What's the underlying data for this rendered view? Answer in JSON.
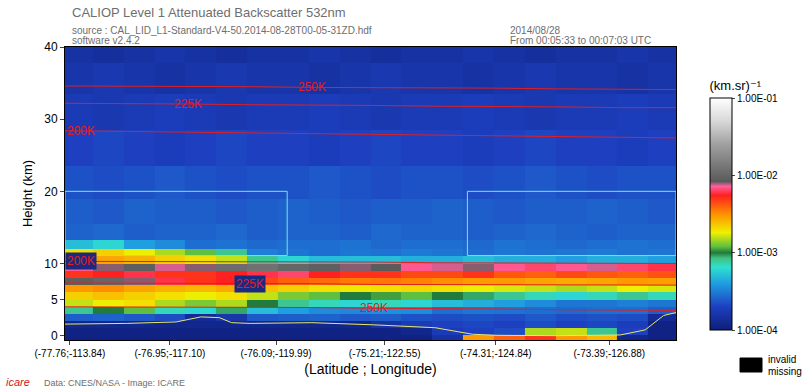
{
  "chart_data": {
    "type": "heatmap",
    "title": "CALIOP Level 1 Attenuated Backscatter 532nm",
    "texts": {
      "source": "source : CAL_LID_L1-Standard-V4-50.2014-08-28T00-05-31ZD.hdf",
      "software": "software v2.4.2",
      "date": "2014/08/28",
      "time": "From 00:05:33 to 00:07:03 UTC",
      "credit": "Data: CNES/NASA - Image: ICARE",
      "logo": "icare"
    },
    "x_label": "(Latitude ; Longitude)",
    "y_label": "Height (km)",
    "xlim": [
      -77.8,
      -72.85
    ],
    "xticks": [
      {
        "value": -77.76,
        "label": "(-77.76;-113.84)"
      },
      {
        "value": -76.95,
        "label": "(-76.95;-117.10)"
      },
      {
        "value": -76.09,
        "label": "(-76.09;-119.99)"
      },
      {
        "value": -75.21,
        "label": "(-75.21;-122.55)"
      },
      {
        "value": -74.31,
        "label": "(-74.31;-124.84)"
      },
      {
        "value": -73.39,
        "label": "(-73.39;-126.88)"
      }
    ],
    "ylim": [
      -0.6,
      40
    ],
    "yticks": [
      0,
      5,
      10,
      20,
      30,
      40
    ],
    "grid": false,
    "x": [
      -77.7,
      -77.45,
      -77.2,
      -76.95,
      -76.7,
      -76.45,
      -76.2,
      -75.95,
      -75.7,
      -75.45,
      -75.2,
      -74.95,
      -74.7,
      -74.45,
      -74.2,
      -73.95,
      -73.7,
      -73.45,
      -73.2,
      -72.95
    ],
    "y": [
      -0.3,
      0.5,
      1.5,
      2.5,
      3.5,
      4.5,
      5.5,
      6.5,
      7.5,
      8.5,
      9.5,
      10.5,
      11.5,
      12.5,
      14,
      17,
      21,
      26,
      31,
      36,
      39.5
    ],
    "cells": [
      [
        0.00011,
        0.00011,
        0.00011,
        0.00011,
        0.00011,
        0.00011,
        0.00011,
        0.00011,
        0.00011,
        0.00011,
        0.00011,
        0.00011,
        0.00015,
        0.003,
        0.004,
        0.005,
        0.003,
        0.0025,
        0.00012,
        0.00011
      ],
      [
        0.00011,
        0.00011,
        0.00011,
        0.00011,
        0.00011,
        0.00011,
        0.00011,
        0.00011,
        0.00011,
        0.00011,
        0.00011,
        0.00012,
        0.00018,
        0.0002,
        0.00022,
        0.0015,
        0.0016,
        0.0008,
        0.0002,
        0.00011
      ],
      [
        0.00012,
        0.00012,
        0.00012,
        0.00012,
        0.00012,
        0.00012,
        0.00012,
        0.00012,
        0.00012,
        0.00012,
        0.00015,
        0.00018,
        0.0002,
        0.00021,
        0.0002,
        0.00022,
        0.0002,
        0.00021,
        0.00019,
        0.00011
      ],
      [
        0.00025,
        0.00026,
        0.00024,
        0.00022,
        0.00013,
        0.00016,
        0.00024,
        0.00025,
        0.00026,
        0.00024,
        0.00025,
        0.00023,
        0.00022,
        0.00023,
        0.00022,
        0.00024,
        0.00022,
        0.00023,
        0.00022,
        0.00013
      ],
      [
        0.0008,
        0.001,
        0.0012,
        0.0007,
        0.0006,
        0.0009,
        0.0005,
        0.0004,
        0.00035,
        0.00034,
        0.00036,
        0.00035,
        0.00028,
        0.0003,
        0.00029,
        0.00028,
        0.00027,
        0.00028,
        0.00028,
        0.00025
      ],
      [
        0.0016,
        0.0018,
        0.002,
        0.0015,
        0.0013,
        0.0015,
        0.001,
        0.0008,
        0.0007,
        0.0006,
        0.0007,
        0.0006,
        0.0005,
        0.00045,
        0.0004,
        0.00035,
        0.0003,
        0.0003,
        0.00032,
        0.0003
      ],
      [
        0.0022,
        0.0024,
        0.0022,
        0.002,
        0.0018,
        0.002,
        0.0016,
        0.0013,
        0.0012,
        0.001,
        0.0011,
        0.0012,
        0.001,
        0.0009,
        0.0008,
        0.0007,
        0.0006,
        0.0007,
        0.0008,
        0.0007
      ],
      [
        0.003,
        0.0032,
        0.0028,
        0.0026,
        0.0025,
        0.0027,
        0.0024,
        0.0022,
        0.002,
        0.0019,
        0.002,
        0.0021,
        0.002,
        0.0018,
        0.0017,
        0.0016,
        0.0015,
        0.0016,
        0.0018,
        0.0017
      ],
      [
        0.009,
        0.01,
        0.008,
        0.006,
        0.005,
        0.0055,
        0.0045,
        0.004,
        0.0038,
        0.0035,
        0.0036,
        0.0034,
        0.0032,
        0.003,
        0.003,
        0.0028,
        0.0027,
        0.0028,
        0.003,
        0.0029
      ],
      [
        0.005,
        0.0055,
        0.006,
        0.005,
        0.005,
        0.0055,
        0.006,
        0.0065,
        0.0055,
        0.005,
        0.005,
        0.0045,
        0.0045,
        0.005,
        0.0042,
        0.004,
        0.0045,
        0.0042,
        0.004,
        0.0043
      ],
      [
        0.007,
        0.008,
        0.009,
        0.0075,
        0.008,
        0.011,
        0.012,
        0.01,
        0.009,
        0.008,
        0.0085,
        0.007,
        0.0075,
        0.008,
        0.007,
        0.0065,
        0.007,
        0.0075,
        0.0065,
        0.006
      ],
      [
        0.0025,
        0.0028,
        0.0026,
        0.0022,
        0.002,
        0.0016,
        0.0008,
        0.0006,
        0.0005,
        0.0005,
        0.0005,
        0.00045,
        0.00045,
        0.0005,
        0.00045,
        0.00045,
        0.0004,
        0.00045,
        0.00045,
        0.0004
      ],
      [
        0.002,
        0.0022,
        0.0018,
        0.0015,
        0.0012,
        0.0008,
        0.00032,
        0.0003,
        0.00028,
        0.0003,
        0.00029,
        0.00031,
        0.0003,
        0.00028,
        0.0003,
        0.00029,
        0.0003,
        0.00031,
        0.00029,
        0.0003
      ],
      [
        0.0005,
        0.0006,
        0.0004,
        0.00035,
        0.00028,
        0.00029,
        0.00027,
        0.00028,
        0.00028,
        0.00029,
        0.00027,
        0.00028,
        0.00028,
        0.00027,
        0.00029,
        0.00028,
        0.00027,
        0.00028,
        0.00029,
        0.00028
      ],
      [
        0.00026,
        0.00027,
        0.00025,
        0.00026,
        0.00026,
        0.00027,
        0.00025,
        0.00026,
        0.00026,
        0.00025,
        0.00027,
        0.00026,
        0.00026,
        0.00025,
        0.00026,
        0.00027,
        0.00026,
        0.00025,
        0.00026,
        0.00026
      ],
      [
        0.00025,
        0.00024,
        0.00026,
        0.00025,
        0.00025,
        0.00024,
        0.00025,
        0.00026,
        0.00025,
        0.00024,
        0.00025,
        0.00025,
        0.00026,
        0.00025,
        0.00024,
        0.00025,
        0.00025,
        0.00026,
        0.00025,
        0.00024
      ],
      [
        0.00023,
        0.00022,
        0.00023,
        0.00024,
        0.00023,
        0.00022,
        0.00023,
        0.00023,
        0.00024,
        0.00023,
        0.00022,
        0.00023,
        0.00023,
        0.00022,
        0.00023,
        0.00024,
        0.00023,
        0.00022,
        0.00023,
        0.00023
      ],
      [
        0.0002,
        0.00021,
        0.0002,
        0.00019,
        0.0002,
        0.00021,
        0.0002,
        0.0002,
        0.00019,
        0.0002,
        0.00021,
        0.0002,
        0.0002,
        0.00019,
        0.0002,
        0.00021,
        0.0002,
        0.0002,
        0.00019,
        0.0002
      ],
      [
        0.00018,
        0.00017,
        0.00018,
        0.00019,
        0.00018,
        0.00017,
        0.00018,
        0.00018,
        0.00019,
        0.00018,
        0.00017,
        0.00018,
        0.00018,
        0.00019,
        0.00018,
        0.00017,
        0.00018,
        0.00018,
        0.00019,
        0.00018
      ],
      [
        0.00016,
        0.00017,
        0.00016,
        0.00015,
        0.00016,
        0.00017,
        0.00016,
        0.00016,
        0.00015,
        0.00016,
        0.00017,
        0.00016,
        0.00016,
        0.00015,
        0.00016,
        0.00017,
        0.00016,
        0.00016,
        0.00015,
        0.00016
      ],
      [
        0.00015,
        0.00014,
        0.00015,
        0.00016,
        0.00015,
        0.00014,
        0.00015,
        0.00015,
        0.00016,
        0.00015,
        0.00014,
        0.00015,
        0.00015,
        0.00016,
        0.00015,
        0.00014,
        0.00015,
        0.00015,
        0.00016,
        0.00015
      ]
    ],
    "colorbar": {
      "title": "(km.sr)⁻¹",
      "range": [
        0.0001,
        0.1
      ],
      "ticks": [
        {
          "value": 0.0001,
          "label": "1.00E-04"
        },
        {
          "value": 0.001,
          "label": "1.00E-03"
        },
        {
          "value": 0.01,
          "label": "1.00E-02"
        },
        {
          "value": 0.1,
          "label": "1.00E-01"
        }
      ]
    },
    "series": [
      {
        "name": "250K",
        "type": "line",
        "color": "#e02020",
        "x": [
          -77.8,
          -77.3,
          -76.8,
          -76.3,
          -75.8,
          -75.3,
          -74.8,
          -74.3,
          -73.8,
          -73.3,
          -72.85
        ],
        "values": [
          34.6,
          34.6,
          34.5,
          34.5,
          34.4,
          34.4,
          34.3,
          34.3,
          34.2,
          34.2,
          34.1
        ]
      },
      {
        "name": "225K",
        "type": "line",
        "color": "#e02020",
        "x": [
          -77.8,
          -77.3,
          -76.8,
          -76.3,
          -75.8,
          -75.3,
          -74.8,
          -74.3,
          -73.8,
          -73.3,
          -72.85
        ],
        "values": [
          32.2,
          32.2,
          32.1,
          32.0,
          32.0,
          31.9,
          31.8,
          31.8,
          31.7,
          31.6,
          31.6
        ]
      },
      {
        "name": "200K",
        "type": "line",
        "color": "#e02020",
        "x": [
          -77.8,
          -77.3,
          -76.8,
          -76.3,
          -75.8,
          -75.3,
          -74.8,
          -74.3,
          -73.8,
          -73.3,
          -72.85
        ],
        "values": [
          28.4,
          28.3,
          28.2,
          28.1,
          28.0,
          27.9,
          27.8,
          27.7,
          27.6,
          27.5,
          27.4
        ]
      },
      {
        "name": "200K",
        "type": "line",
        "color": "#e02020",
        "x": [
          -77.8,
          -77.3,
          -76.8,
          -76.3,
          -75.8,
          -75.3,
          -74.8,
          -74.3,
          -73.8,
          -73.3,
          -72.85
        ],
        "values": [
          10.3,
          10.3,
          10.3,
          10.2,
          10.2,
          10.2,
          10.1,
          10.1,
          10.1,
          10.0,
          10.0
        ]
      },
      {
        "name": "225K",
        "type": "line",
        "color": "#e02020",
        "x": [
          -77.8,
          -77.3,
          -76.8,
          -76.3,
          -75.8,
          -75.3,
          -74.8,
          -74.3,
          -73.8,
          -73.3,
          -72.85
        ],
        "values": [
          7.3,
          7.3,
          7.2,
          7.2,
          7.2,
          7.1,
          7.1,
          7.1,
          7.0,
          7.0,
          7.0
        ]
      },
      {
        "name": "250K",
        "type": "line",
        "color": "#e02020",
        "x": [
          -77.8,
          -77.3,
          -76.8,
          -76.3,
          -75.8,
          -75.3,
          -74.8,
          -74.3,
          -73.8,
          -73.3,
          -72.85
        ],
        "values": [
          4.0,
          4.0,
          4.0,
          3.9,
          3.9,
          3.8,
          3.8,
          3.7,
          3.6,
          3.6,
          3.5
        ]
      },
      {
        "type": "line",
        "color": "#e8e870",
        "x": [
          -77.8,
          -77.3,
          -76.9,
          -76.8,
          -76.7,
          -76.55,
          -76.45,
          -76.3,
          -75.8,
          -75.3,
          -74.8,
          -74.5,
          -74.3,
          -73.8,
          -73.3,
          -73.1,
          -72.95,
          -72.85
        ],
        "values": [
          1.6,
          1.7,
          1.9,
          2.3,
          2.6,
          2.5,
          1.8,
          1.7,
          1.8,
          1.5,
          1.1,
          0.2,
          0.05,
          0.0,
          0.1,
          0.8,
          2.8,
          3.2
        ]
      }
    ],
    "boxes": [
      {
        "x": [
          -77.8,
          -76.0
        ],
        "y": [
          11.1,
          20
        ]
      },
      {
        "x": [
          -74.54,
          -72.85
        ],
        "y": [
          11.1,
          20
        ]
      }
    ],
    "missing_legend": [
      "invalid",
      "missing"
    ]
  }
}
